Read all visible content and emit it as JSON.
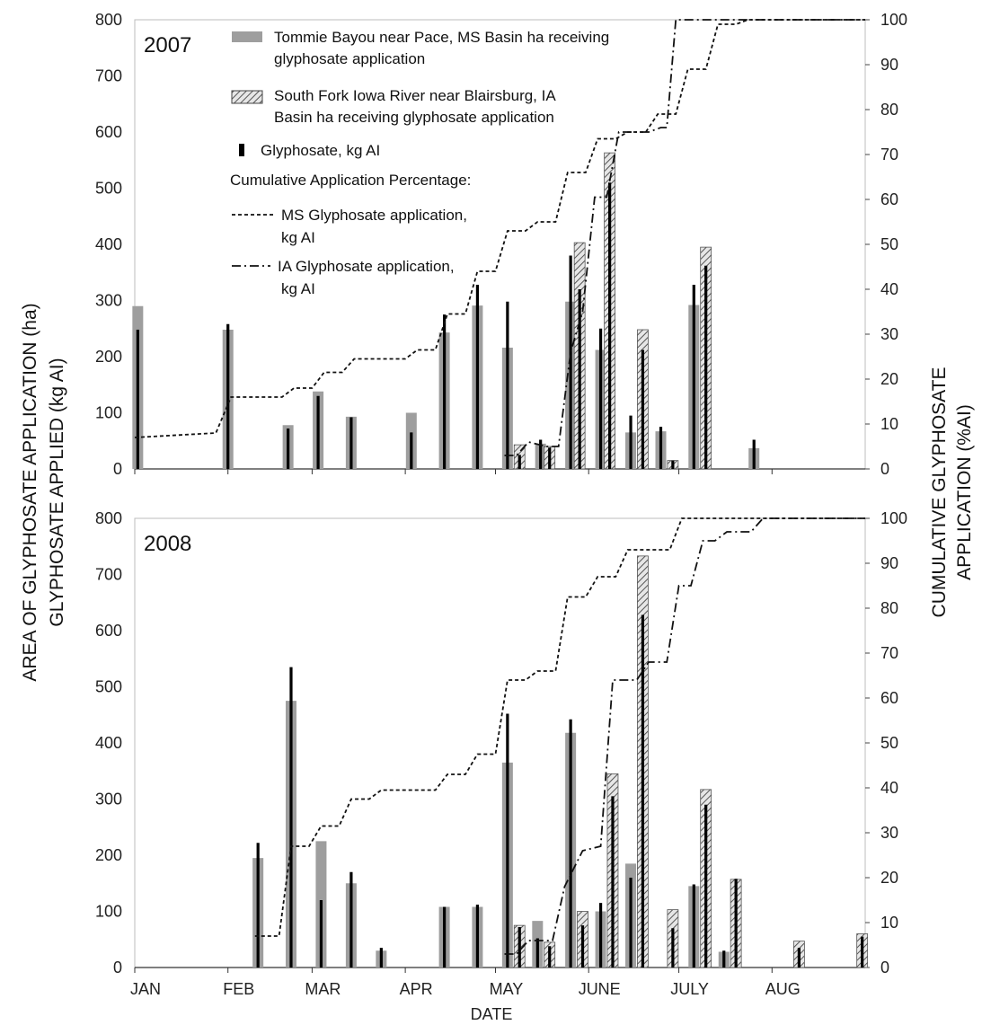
{
  "chart_data": {
    "type": "bar",
    "xlabel": "DATE",
    "ylabel_left_line1": "AREA OF GLYPHOSATE APPLICATION (ha)",
    "ylabel_left_line2": "GLYPHOSATE APPLIED (kg AI)",
    "ylabel_right_line1": "CUMULATIVE GLYPHOSATE",
    "ylabel_right_line2": "APPLICATION (%AI)",
    "ylim_left": [
      0,
      800
    ],
    "ylim_right": [
      0,
      100
    ],
    "yticks_left": [
      0,
      100,
      200,
      300,
      400,
      500,
      600,
      700,
      800
    ],
    "yticks_right": [
      0,
      10,
      20,
      30,
      40,
      50,
      60,
      70,
      80,
      90,
      100
    ],
    "months": [
      {
        "label": "JAN",
        "day": 1
      },
      {
        "label": "FEB",
        "day": 32
      },
      {
        "label": "MAR",
        "day": 60
      },
      {
        "label": "APR",
        "day": 91
      },
      {
        "label": "MAY",
        "day": 121
      },
      {
        "label": "JUNE",
        "day": 152
      },
      {
        "label": "JULY",
        "day": 182
      },
      {
        "label": "AUG",
        "day": 213
      }
    ],
    "x_range_days": [
      1,
      244
    ],
    "legend": {
      "ms_bar": [
        "Tommie Bayou near Pace, MS Basin ha receiving",
        "glyphosate application"
      ],
      "ia_bar": [
        "South Fork Iowa River near Blairsburg, IA",
        "Basin ha receiving glyphosate application"
      ],
      "glyphosate": "Glyphosate, kg AI",
      "cumulative_title": "Cumulative Application  Percentage:",
      "ms_line": [
        "MS Glyphosate application,",
        "kg AI"
      ],
      "ia_line": [
        "IA Glyphosate application,",
        "kg AI"
      ]
    },
    "panels": [
      {
        "year": "2007",
        "ms_bars": [
          {
            "day": 2,
            "ha": 290,
            "kg": 248
          },
          {
            "day": 32,
            "ha": 248,
            "kg": 258
          },
          {
            "day": 52,
            "ha": 78,
            "kg": 72
          },
          {
            "day": 62,
            "ha": 138,
            "kg": 130
          },
          {
            "day": 73,
            "ha": 93,
            "kg": 92
          },
          {
            "day": 93,
            "ha": 100,
            "kg": 65
          },
          {
            "day": 104,
            "ha": 243,
            "kg": 275
          },
          {
            "day": 115,
            "ha": 291,
            "kg": 328
          },
          {
            "day": 125,
            "ha": 216,
            "kg": 298
          },
          {
            "day": 136,
            "ha": 45,
            "kg": 52
          },
          {
            "day": 146,
            "ha": 298,
            "kg": 380
          },
          {
            "day": 156,
            "ha": 212,
            "kg": 250
          },
          {
            "day": 166,
            "ha": 65,
            "kg": 95
          },
          {
            "day": 176,
            "ha": 67,
            "kg": 75
          },
          {
            "day": 187,
            "ha": 292,
            "kg": 328
          },
          {
            "day": 207,
            "ha": 37,
            "kg": 52
          }
        ],
        "ia_bars": [
          {
            "day": 129,
            "ha": 43,
            "kg": 25
          },
          {
            "day": 139,
            "ha": 40,
            "kg": 38
          },
          {
            "day": 149,
            "ha": 403,
            "kg": 320
          },
          {
            "day": 159,
            "ha": 563,
            "kg": 510
          },
          {
            "day": 170,
            "ha": 248,
            "kg": 212
          },
          {
            "day": 180,
            "ha": 15,
            "kg": 15
          },
          {
            "day": 191,
            "ha": 395,
            "kg": 362
          }
        ],
        "ms_cumulative": [
          [
            1,
            7
          ],
          [
            28,
            8
          ],
          [
            33,
            16
          ],
          [
            50,
            16
          ],
          [
            54,
            18
          ],
          [
            60,
            18
          ],
          [
            64,
            21.5
          ],
          [
            70,
            21.5
          ],
          [
            74,
            24.5
          ],
          [
            91,
            24.5
          ],
          [
            95,
            26.5
          ],
          [
            101,
            26.5
          ],
          [
            105,
            34.5
          ],
          [
            111,
            34.5
          ],
          [
            115,
            44
          ],
          [
            121,
            44
          ],
          [
            125,
            53
          ],
          [
            131,
            53
          ],
          [
            135,
            55
          ],
          [
            141,
            55
          ],
          [
            145,
            66
          ],
          [
            151,
            66
          ],
          [
            155,
            73.5
          ],
          [
            161,
            73.5
          ],
          [
            165,
            75
          ],
          [
            171,
            75
          ],
          [
            175,
            79
          ],
          [
            181,
            79
          ],
          [
            185,
            89
          ],
          [
            191,
            89
          ],
          [
            195,
            99
          ],
          [
            201,
            99
          ],
          [
            205,
            100
          ],
          [
            244,
            100
          ]
        ],
        "ia_cumulative": [
          [
            124,
            3
          ],
          [
            128,
            3
          ],
          [
            132,
            6
          ],
          [
            138,
            5
          ],
          [
            142,
            5
          ],
          [
            146,
            26
          ],
          [
            150,
            35
          ],
          [
            154,
            60.5
          ],
          [
            158,
            60.5
          ],
          [
            162,
            75
          ],
          [
            172,
            75
          ],
          [
            176,
            76
          ],
          [
            178,
            76
          ],
          [
            181,
            100
          ],
          [
            244,
            100
          ]
        ]
      },
      {
        "year": "2008",
        "ms_bars": [
          {
            "day": 42,
            "ha": 195,
            "kg": 222
          },
          {
            "day": 53,
            "ha": 475,
            "kg": 535
          },
          {
            "day": 63,
            "ha": 225,
            "kg": 120
          },
          {
            "day": 73,
            "ha": 150,
            "kg": 170
          },
          {
            "day": 83,
            "ha": 30,
            "kg": 35
          },
          {
            "day": 104,
            "ha": 108,
            "kg": 108
          },
          {
            "day": 115,
            "ha": 108,
            "kg": 112
          },
          {
            "day": 125,
            "ha": 365,
            "kg": 452
          },
          {
            "day": 135,
            "ha": 83,
            "kg": 52
          },
          {
            "day": 146,
            "ha": 418,
            "kg": 442
          },
          {
            "day": 156,
            "ha": 100,
            "kg": 115
          },
          {
            "day": 166,
            "ha": 185,
            "kg": 160
          },
          {
            "day": 187,
            "ha": 145,
            "kg": 148
          },
          {
            "day": 197,
            "ha": 28,
            "kg": 30
          }
        ],
        "ia_bars": [
          {
            "day": 129,
            "ha": 75,
            "kg": 72
          },
          {
            "day": 139,
            "ha": 45,
            "kg": 38
          },
          {
            "day": 150,
            "ha": 100,
            "kg": 75
          },
          {
            "day": 160,
            "ha": 345,
            "kg": 305
          },
          {
            "day": 170,
            "ha": 733,
            "kg": 628
          },
          {
            "day": 180,
            "ha": 103,
            "kg": 70
          },
          {
            "day": 191,
            "ha": 317,
            "kg": 290
          },
          {
            "day": 201,
            "ha": 157,
            "kg": 158
          },
          {
            "day": 222,
            "ha": 47,
            "kg": 35
          },
          {
            "day": 243,
            "ha": 60,
            "kg": 55
          }
        ],
        "ms_cumulative": [
          [
            41,
            7
          ],
          [
            49,
            7
          ],
          [
            53,
            27
          ],
          [
            59,
            27
          ],
          [
            63,
            31.5
          ],
          [
            69,
            31.5
          ],
          [
            73,
            37.5
          ],
          [
            79,
            37.5
          ],
          [
            83,
            39.5
          ],
          [
            101,
            39.5
          ],
          [
            105,
            43
          ],
          [
            111,
            43
          ],
          [
            115,
            47.5
          ],
          [
            121,
            47.5
          ],
          [
            125,
            64
          ],
          [
            131,
            64
          ],
          [
            135,
            66
          ],
          [
            141,
            66
          ],
          [
            145,
            82.5
          ],
          [
            151,
            82.5
          ],
          [
            155,
            87
          ],
          [
            161,
            87
          ],
          [
            165,
            93
          ],
          [
            179,
            93
          ],
          [
            183,
            100
          ],
          [
            244,
            100
          ]
        ],
        "ia_cumulative": [
          [
            124,
            3
          ],
          [
            128,
            3
          ],
          [
            132,
            6
          ],
          [
            140,
            6
          ],
          [
            144,
            18
          ],
          [
            150,
            26
          ],
          [
            156,
            27
          ],
          [
            160,
            64
          ],
          [
            164,
            64
          ],
          [
            168,
            64
          ],
          [
            172,
            68
          ],
          [
            178,
            68
          ],
          [
            182,
            85
          ],
          [
            186,
            85
          ],
          [
            190,
            95
          ],
          [
            194,
            95
          ],
          [
            198,
            97
          ],
          [
            206,
            97
          ],
          [
            210,
            100
          ],
          [
            244,
            100
          ]
        ]
      }
    ]
  }
}
